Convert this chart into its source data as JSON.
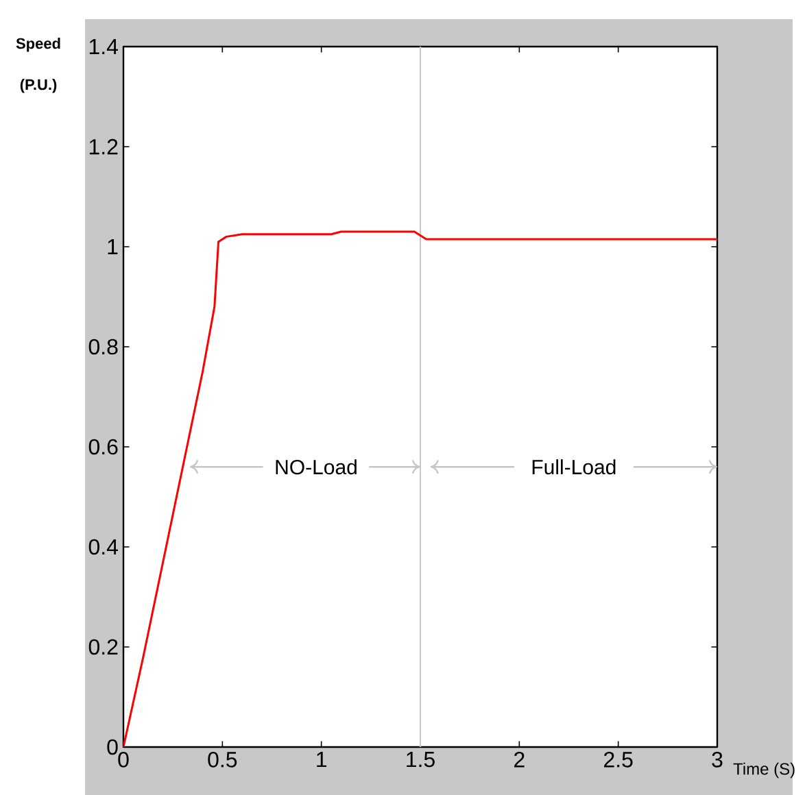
{
  "chart_data": {
    "type": "line",
    "xlabel": "Time (S)",
    "ylabel": "Speed (P.U.)",
    "x": [
      0,
      0.1,
      0.2,
      0.3,
      0.4,
      0.46,
      0.48,
      0.52,
      0.6,
      1.05,
      1.1,
      1.47,
      1.53,
      3
    ],
    "series": [
      {
        "color": "#ff0000",
        "values": [
          0,
          0.18,
          0.37,
          0.56,
          0.75,
          0.88,
          1.01,
          1.02,
          1.025,
          1.025,
          1.03,
          1.03,
          1.015,
          1.015
        ]
      }
    ],
    "xlim": [
      0,
      3
    ],
    "ylim": [
      0,
      1.4
    ],
    "xticks": [
      0,
      0.5,
      1,
      1.5,
      2,
      2.5,
      3
    ],
    "yticks": [
      0,
      0.2,
      0.4,
      0.6,
      0.8,
      1,
      1.2,
      1.4
    ],
    "ref_lines": [
      {
        "axis": "x",
        "value": 1.5,
        "color": "#c8c8c8"
      }
    ],
    "annotations": [
      {
        "text": "NO-Load",
        "x": 1.5,
        "y": 0.56
      },
      "Full-Load"
    ],
    "grid": false,
    "legend": false,
    "marker": "none",
    "line_style": "solid"
  }
}
